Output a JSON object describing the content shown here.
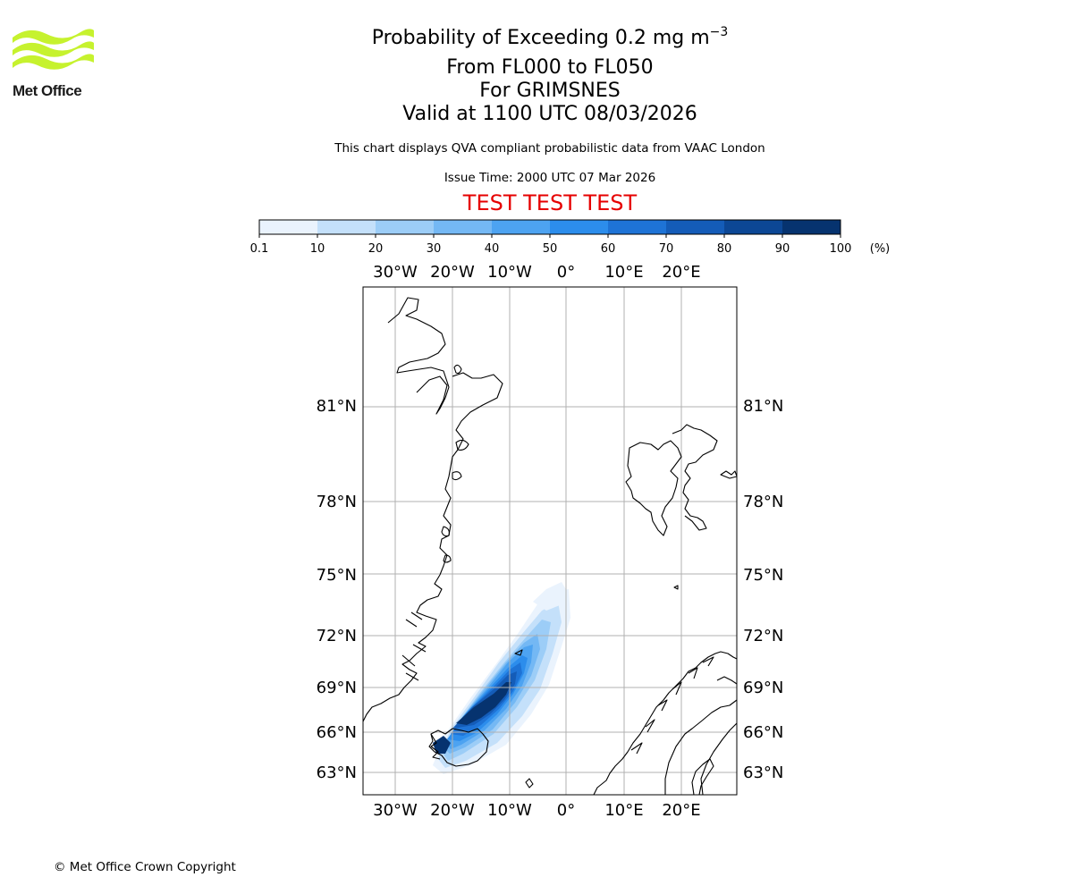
{
  "header": {
    "logo_text": "Met Office",
    "title_main": "Probability of Exceeding 0.2 mg m",
    "title_superscript": "−3",
    "title_levels": "From FL000 to FL050",
    "title_volcano": "For GRIMSNES",
    "title_valid": "Valid at 1100 UTC 08/03/2026",
    "subtitle": "This chart displays QVA compliant probabilistic data from VAAC London",
    "issue_time": "Issue Time: 2000 UTC 07 Mar 2026",
    "banner": "TEST TEST TEST"
  },
  "colorbar": {
    "ticks": [
      "0.1",
      "10",
      "20",
      "30",
      "40",
      "50",
      "60",
      "70",
      "80",
      "90",
      "100"
    ],
    "unit": "(%)",
    "colors": [
      "#eaf3fd",
      "#c4e0fa",
      "#9ccdf7",
      "#74b8f4",
      "#4da3f1",
      "#2c8dec",
      "#1e73d6",
      "#145cb8",
      "#0c4795",
      "#06336f"
    ]
  },
  "map": {
    "lon_labels": [
      "30°W",
      "20°W",
      "10°W",
      "0°",
      "10°E",
      "20°E"
    ],
    "lat_labels": [
      "81°N",
      "78°N",
      "75°N",
      "72°N",
      "69°N",
      "66°N",
      "63°N"
    ],
    "land_outline_color": "#000000",
    "grid_color": "#b0b0b0"
  },
  "footer": {
    "copyright": "© Met Office Crown Copyright"
  }
}
